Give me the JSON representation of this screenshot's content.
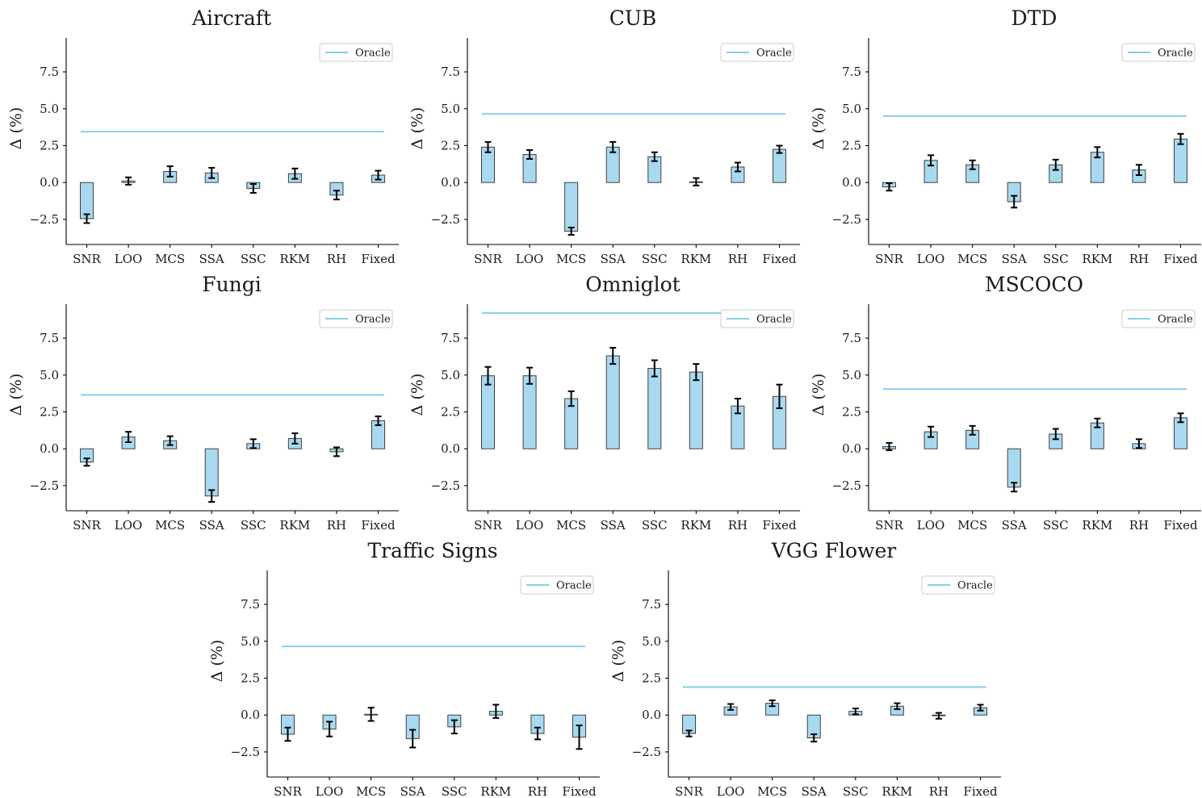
{
  "figure": {
    "ylabel": "Δ (%)",
    "ticks": [
      "−2.5",
      "0.0",
      "2.5",
      "5.0",
      "7.5"
    ],
    "legend_label": "Oracle"
  },
  "chart_data": [
    {
      "type": "bar",
      "title": "Aircraft",
      "categories": [
        "SNR",
        "LOO",
        "MCS",
        "SSA",
        "SSC",
        "RKM",
        "RH",
        "Fixed"
      ],
      "values": [
        -2.45,
        0.1,
        0.75,
        0.65,
        -0.4,
        0.6,
        -0.85,
        0.5
      ],
      "errors": [
        0.3,
        0.25,
        0.35,
        0.35,
        0.3,
        0.35,
        0.3,
        0.3
      ],
      "oracle": 3.45,
      "ylabel": "Δ (%)",
      "ylim": [
        -4.2,
        9.8
      ],
      "legend": "top-right"
    },
    {
      "type": "bar",
      "title": "CUB",
      "categories": [
        "SNR",
        "LOO",
        "MCS",
        "SSA",
        "SSC",
        "RKM",
        "RH",
        "Fixed"
      ],
      "values": [
        2.4,
        1.9,
        -3.3,
        2.4,
        1.75,
        0.05,
        1.05,
        2.25
      ],
      "errors": [
        0.35,
        0.3,
        0.25,
        0.35,
        0.3,
        0.25,
        0.3,
        0.25
      ],
      "oracle": 4.65,
      "ylabel": "Δ (%)",
      "ylim": [
        -4.2,
        9.8
      ],
      "legend": "top-right"
    },
    {
      "type": "bar",
      "title": "DTD",
      "categories": [
        "SNR",
        "LOO",
        "MCS",
        "SSA",
        "SSC",
        "RKM",
        "RH",
        "Fixed"
      ],
      "values": [
        -0.3,
        1.5,
        1.2,
        -1.3,
        1.2,
        2.05,
        0.85,
        2.95
      ],
      "errors": [
        0.25,
        0.35,
        0.3,
        0.4,
        0.35,
        0.35,
        0.35,
        0.35
      ],
      "oracle": 4.5,
      "ylabel": "Δ (%)",
      "ylim": [
        -4.2,
        9.8
      ],
      "legend": "top-right"
    },
    {
      "type": "bar",
      "title": "Fungi",
      "categories": [
        "SNR",
        "LOO",
        "MCS",
        "SSA",
        "SSC",
        "RKM",
        "RH",
        "Fixed"
      ],
      "values": [
        -0.9,
        0.8,
        0.55,
        -3.2,
        0.35,
        0.7,
        -0.2,
        1.9
      ],
      "errors": [
        0.25,
        0.35,
        0.3,
        0.4,
        0.3,
        0.35,
        0.3,
        0.3
      ],
      "oracle": 3.65,
      "ylabel": "Δ (%)",
      "ylim": [
        -4.2,
        9.8
      ],
      "legend": "top-right"
    },
    {
      "type": "bar",
      "title": "Omniglot",
      "categories": [
        "SNR",
        "LOO",
        "MCS",
        "SSA",
        "SSC",
        "RKM",
        "RH",
        "Fixed"
      ],
      "values": [
        4.95,
        4.95,
        3.4,
        6.3,
        5.45,
        5.2,
        2.9,
        3.55
      ],
      "errors": [
        0.6,
        0.55,
        0.5,
        0.55,
        0.55,
        0.55,
        0.5,
        0.8
      ],
      "oracle": 9.2,
      "ylabel": "Δ (%)",
      "ylim": [
        -4.2,
        9.8
      ],
      "legend": "top-right"
    },
    {
      "type": "bar",
      "title": "MSCOCO",
      "categories": [
        "SNR",
        "LOO",
        "MCS",
        "SSA",
        "SSC",
        "RKM",
        "RH",
        "Fixed"
      ],
      "values": [
        0.15,
        1.15,
        1.25,
        -2.6,
        1.0,
        1.75,
        0.35,
        2.1
      ],
      "errors": [
        0.25,
        0.35,
        0.3,
        0.3,
        0.35,
        0.3,
        0.3,
        0.3
      ],
      "oracle": 4.05,
      "ylabel": "Δ (%)",
      "ylim": [
        -4.2,
        9.8
      ],
      "legend": "top-right"
    },
    {
      "type": "bar",
      "title": "Traffic Signs",
      "categories": [
        "SNR",
        "LOO",
        "MCS",
        "SSA",
        "SSC",
        "RKM",
        "RH",
        "Fixed"
      ],
      "values": [
        -1.3,
        -0.95,
        0.05,
        -1.6,
        -0.8,
        0.25,
        -1.25,
        -1.5
      ],
      "errors": [
        0.45,
        0.5,
        0.45,
        0.6,
        0.45,
        0.45,
        0.4,
        0.8
      ],
      "oracle": 4.65,
      "ylabel": "Δ (%)",
      "ylim": [
        -4.2,
        9.8
      ],
      "legend": "top-right"
    },
    {
      "type": "bar",
      "title": "VGG Flower",
      "categories": [
        "SNR",
        "LOO",
        "MCS",
        "SSA",
        "SSC",
        "RKM",
        "RH",
        "Fixed"
      ],
      "values": [
        -1.25,
        0.55,
        0.8,
        -1.55,
        0.25,
        0.6,
        -0.05,
        0.5
      ],
      "errors": [
        0.2,
        0.2,
        0.2,
        0.25,
        0.2,
        0.2,
        0.2,
        0.2
      ],
      "oracle": 1.9,
      "ylabel": "Δ (%)",
      "ylim": [
        -4.2,
        9.8
      ],
      "legend": "top-right"
    }
  ]
}
